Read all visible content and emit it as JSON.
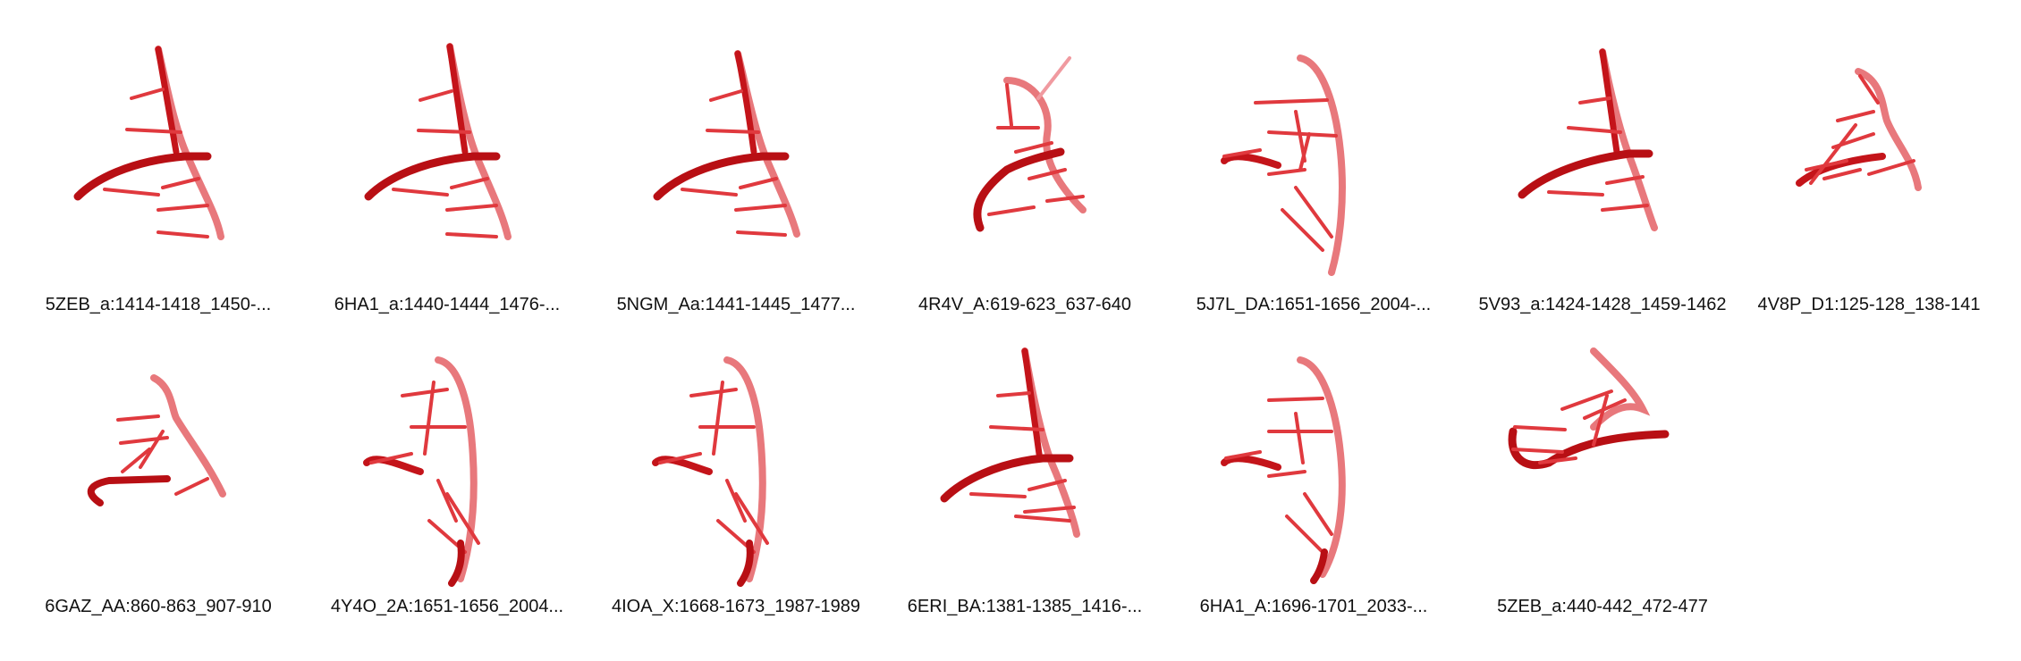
{
  "panels": [
    {
      "label": "5ZEB_a:1414-1418_1450-..."
    },
    {
      "label": "6HA1_a:1440-1444_1476-..."
    },
    {
      "label": "5NGM_Aa:1441-1445_1477..."
    },
    {
      "label": "4R4V_A:619-623_637-640"
    },
    {
      "label": "5J7L_DA:1651-1656_2004-..."
    },
    {
      "label": "5V93_a:1424-1428_1459-1462"
    },
    {
      "label": "4V8P_D1:125-128_138-141"
    },
    {
      "label": "6GAZ_AA:860-863_907-910"
    },
    {
      "label": "4Y4O_2A:1651-1656_2004..."
    },
    {
      "label": "4IOA_X:1668-1673_1987-1989"
    },
    {
      "label": "6ERI_BA:1381-1385_1416-..."
    },
    {
      "label": "6HA1_A:1696-1701_2033-..."
    },
    {
      "label": "5ZEB_a:440-442_472-477"
    }
  ],
  "colors": {
    "backbone_dark": "#c4141a",
    "backbone_light": "#e8787c",
    "base": "#e0393e"
  }
}
